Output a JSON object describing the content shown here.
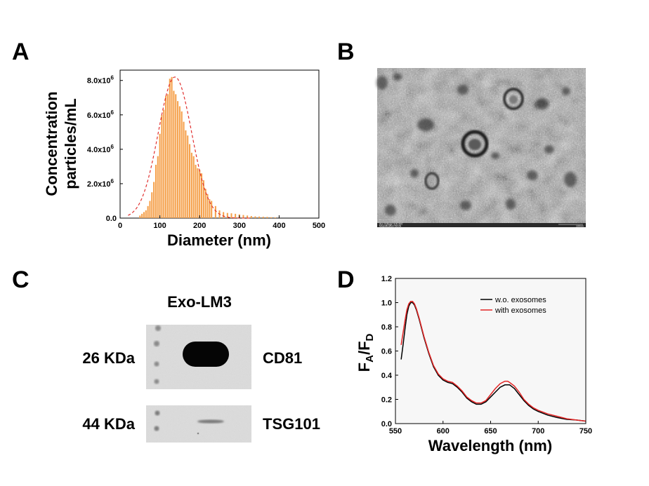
{
  "panels": {
    "a": {
      "letter": "A"
    },
    "b": {
      "letter": "B",
      "caption_left_1": "Acc.Voltage=100.0kV",
      "caption_left_2": "Magnification=60.0k",
      "caption_right": "100nm"
    },
    "c": {
      "letter": "C"
    },
    "d": {
      "letter": "D"
    }
  },
  "blot": {
    "title": "Exo-LM3",
    "rows": [
      {
        "weight": "26 KDa",
        "protein": "CD81"
      },
      {
        "weight": "44 KDa",
        "protein": "TSG101"
      }
    ]
  },
  "colors": {
    "bar": "#F5A04A",
    "fit": "#E0302F",
    "red_line": "#E32626",
    "black_line": "#000000"
  },
  "chart_data": [
    {
      "panel": "A",
      "type": "bar",
      "xlabel": "Diameter (nm)",
      "ylabel_line1": "Concentration",
      "ylabel_line2": "particles/mL",
      "xlim": [
        0,
        500
      ],
      "ylim": [
        0,
        8600000
      ],
      "xticks": [
        "0",
        "100",
        "200",
        "300",
        "400",
        "500"
      ],
      "yticks": [
        {
          "value": 0,
          "base": "0.0",
          "exp": ""
        },
        {
          "value": 2000000,
          "base": "2.0x10",
          "exp": "6"
        },
        {
          "value": 4000000,
          "base": "4.0x10",
          "exp": "6"
        },
        {
          "value": 6000000,
          "base": "6.0x10",
          "exp": "6"
        },
        {
          "value": 8000000,
          "base": "8.0x10",
          "exp": "6"
        }
      ],
      "bin_width": 5,
      "x": [
        50,
        55,
        60,
        65,
        70,
        75,
        80,
        85,
        90,
        95,
        100,
        105,
        110,
        115,
        120,
        125,
        130,
        135,
        140,
        145,
        150,
        155,
        160,
        165,
        170,
        175,
        180,
        185,
        190,
        195,
        200,
        205,
        210,
        215,
        220,
        225,
        230,
        240,
        250,
        260,
        270,
        280,
        290,
        300,
        310,
        320,
        330,
        340,
        350,
        360,
        370,
        380,
        390
      ],
      "values": [
        150000,
        250000,
        350000,
        450000,
        700000,
        1000000,
        1500000,
        2100000,
        3100000,
        3600000,
        4900000,
        6000000,
        6300000,
        7100000,
        7200000,
        8100000,
        8200000,
        7400000,
        7200000,
        6800000,
        6500000,
        6200000,
        5600000,
        5100000,
        4800000,
        4300000,
        3800000,
        3600000,
        3100000,
        2900000,
        2800000,
        2600000,
        2200000,
        1700000,
        1400000,
        1100000,
        1000000,
        700000,
        450000,
        350000,
        300000,
        280000,
        250000,
        220000,
        180000,
        150000,
        120000,
        100000,
        90000,
        80000,
        70000,
        50000,
        40000
      ],
      "fit": {
        "label": "Gaussian fit",
        "center": 138,
        "sigma": 42,
        "amplitude": 8200000
      },
      "grid": false
    },
    {
      "panel": "D",
      "type": "line",
      "xlabel": "Wavelength (nm)",
      "ylabel": "FA/FD",
      "ylabel_main": "F",
      "ylabel_sub1": "A",
      "ylabel_sub2": "D",
      "xlim": [
        550,
        750
      ],
      "ylim": [
        0,
        1.2
      ],
      "xticks": [
        "550",
        "600",
        "650",
        "700",
        "750"
      ],
      "yticks": [
        "0.0",
        "0.2",
        "0.4",
        "0.6",
        "0.8",
        "1.0",
        "1.2"
      ],
      "legend_position": "top-right",
      "series": [
        {
          "name": "w.o. exosomes",
          "color": "#000000",
          "x": [
            556,
            558,
            560,
            562,
            564,
            566,
            568,
            570,
            572,
            575,
            580,
            585,
            590,
            595,
            600,
            605,
            610,
            615,
            620,
            625,
            630,
            635,
            640,
            645,
            650,
            655,
            660,
            665,
            668,
            670,
            675,
            680,
            685,
            690,
            695,
            700,
            710,
            720,
            730,
            740,
            750
          ],
          "y": [
            0.53,
            0.65,
            0.78,
            0.9,
            0.97,
            1.0,
            1.0,
            0.98,
            0.94,
            0.86,
            0.71,
            0.58,
            0.47,
            0.4,
            0.36,
            0.34,
            0.33,
            0.3,
            0.26,
            0.21,
            0.18,
            0.16,
            0.16,
            0.18,
            0.22,
            0.26,
            0.3,
            0.32,
            0.32,
            0.32,
            0.29,
            0.24,
            0.19,
            0.15,
            0.12,
            0.1,
            0.07,
            0.05,
            0.035,
            0.03,
            0.02
          ]
        },
        {
          "name": "with exosomes",
          "color": "#E32626",
          "x": [
            556,
            558,
            560,
            562,
            564,
            566,
            568,
            570,
            572,
            575,
            580,
            585,
            590,
            595,
            600,
            605,
            610,
            615,
            620,
            625,
            630,
            635,
            640,
            645,
            650,
            655,
            660,
            665,
            668,
            670,
            675,
            680,
            685,
            690,
            695,
            700,
            710,
            720,
            730,
            740,
            750
          ],
          "y": [
            0.65,
            0.75,
            0.85,
            0.94,
            0.99,
            1.01,
            1.01,
            0.99,
            0.95,
            0.87,
            0.72,
            0.59,
            0.48,
            0.41,
            0.37,
            0.35,
            0.34,
            0.31,
            0.27,
            0.22,
            0.19,
            0.17,
            0.17,
            0.19,
            0.24,
            0.29,
            0.33,
            0.35,
            0.35,
            0.34,
            0.31,
            0.26,
            0.2,
            0.16,
            0.13,
            0.11,
            0.08,
            0.06,
            0.04,
            0.03,
            0.02
          ]
        }
      ],
      "grid": false
    }
  ]
}
